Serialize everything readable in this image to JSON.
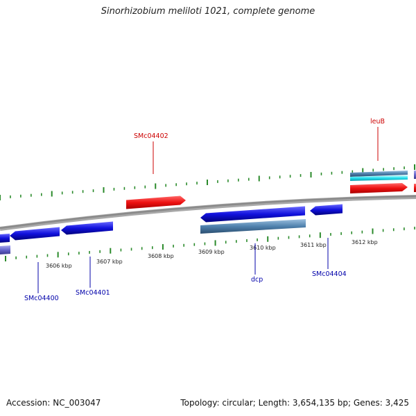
{
  "title": "Sinorhizobium meliloti 1021, complete genome",
  "footer": {
    "accession": "Accession: NC_003047",
    "summary": "Topology: circular; Length: 3,654,135 bp; Genes: 3,425"
  },
  "colors": {
    "backbone": "#8a8a8a",
    "tick": "#2a8a2a",
    "gene_forward": "#ee1111",
    "gene_reverse": "#1111dd",
    "cds_steel": "#4f81ad",
    "rna_cyan": "#22ddee",
    "label_forward": "#cc0000",
    "label_reverse": "#0000aa",
    "partial_gene": "#6666cc"
  },
  "scale_labels": [
    "3606 kbp",
    "3607 kbp",
    "3608 kbp",
    "3609 kbp",
    "3610 kbp",
    "3611 kbp",
    "3612 kbp"
  ],
  "gene_labels": [
    {
      "name": "SMc04402",
      "strand": "forward"
    },
    {
      "name": "leuB",
      "strand": "forward"
    },
    {
      "name": "SMc04400",
      "strand": "reverse"
    },
    {
      "name": "SMc04401",
      "strand": "reverse"
    },
    {
      "name": "dcp",
      "strand": "reverse"
    },
    {
      "name": "SMc04404",
      "strand": "reverse"
    }
  ]
}
